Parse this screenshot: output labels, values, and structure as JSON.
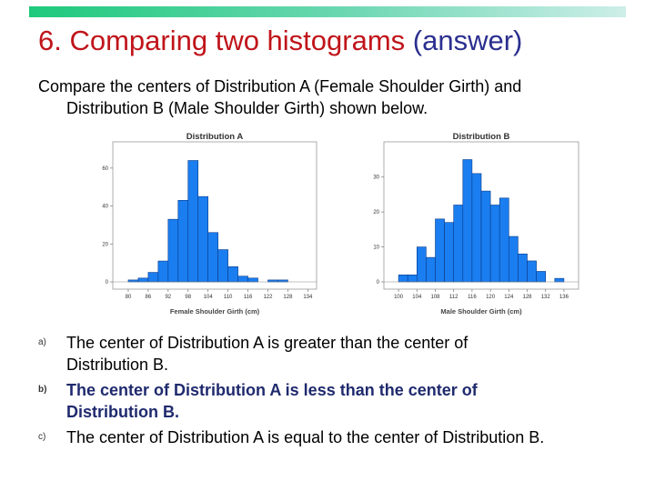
{
  "slide": {
    "title_main": "6. Comparing two histograms",
    "title_suffix": "(answer)",
    "question_line1": "Compare the centers of Distribution A (Female Shoulder Girth) and",
    "question_line2": "Distribution B (Male Shoulder Girth) shown below.",
    "answers": [
      {
        "marker": "a)",
        "line1": "The center of Distribution A is greater than the center of",
        "line2": "Distribution B."
      },
      {
        "marker": "b)",
        "line1": "The center of Distribution A is less than the center of",
        "line2": "Distribution B."
      },
      {
        "marker": "c)",
        "line1": "The center of Distribution A is equal to the center of Distribution B.",
        "line2": ""
      }
    ]
  },
  "colors": {
    "bar": "#1a7ef0",
    "bar_stroke": "#0a3a8a",
    "title_red": "#c0141a",
    "title_blue": "#2b2f8f"
  },
  "chart_data": [
    {
      "type": "bar",
      "title": "Distribution A",
      "xlabel": "Female Shoulder Girth (cm)",
      "ylabel": "",
      "x_ticks": [
        80,
        86,
        92,
        98,
        104,
        110,
        116,
        122,
        128,
        134
      ],
      "x_range": [
        77,
        135
      ],
      "bin_width": 3,
      "bin_starts": [
        80,
        83,
        86,
        89,
        92,
        95,
        98,
        101,
        104,
        107,
        110,
        113,
        116,
        119,
        122,
        125,
        128,
        131
      ],
      "values": [
        1,
        2,
        5,
        11,
        33,
        43,
        64,
        45,
        26,
        17,
        8,
        3,
        2,
        0,
        1,
        1,
        0,
        0
      ],
      "y_ticks": [
        0,
        20,
        40,
        60
      ],
      "ylim": [
        0,
        70
      ],
      "grid": false
    },
    {
      "type": "bar",
      "title": "Distribution B",
      "xlabel": "Male Shoulder Girth (cm)",
      "ylabel": "",
      "x_ticks": [
        100,
        104,
        108,
        112,
        116,
        120,
        124,
        128,
        132,
        136
      ],
      "x_range": [
        98,
        138
      ],
      "bin_width": 2,
      "bin_starts": [
        100,
        102,
        104,
        106,
        108,
        110,
        112,
        114,
        116,
        118,
        120,
        122,
        124,
        126,
        128,
        130,
        132,
        134
      ],
      "values": [
        2,
        2,
        10,
        7,
        18,
        17,
        22,
        35,
        31,
        26,
        22,
        24,
        13,
        8,
        6,
        3,
        0,
        1
      ],
      "y_ticks": [
        0,
        10,
        20,
        30
      ],
      "ylim": [
        0,
        38
      ],
      "grid": false
    }
  ]
}
